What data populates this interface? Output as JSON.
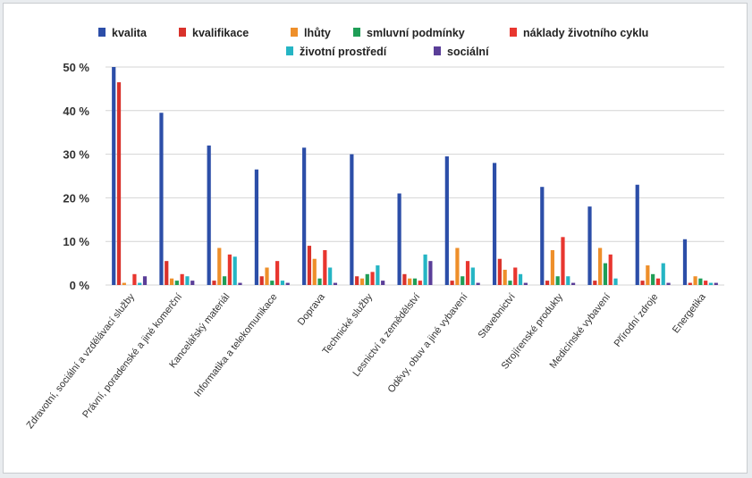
{
  "chart_data": {
    "type": "bar",
    "title": "",
    "xlabel": "",
    "ylabel": "",
    "ylim": [
      0,
      50
    ],
    "yticks": [
      "0 %",
      "10 %",
      "20 %",
      "30 %",
      "40 %",
      "50 %"
    ],
    "grid": true,
    "legend_position": "top",
    "categories": [
      "Zdravotní, sociální a vzdělávací služby",
      "Právní, poradenské a jiné komerční",
      "Kancelářský materiál",
      "Informatika a telekomunikace",
      "Doprava",
      "Technické služby",
      "Lesnictví a zemědělství",
      "Oděvy, obuv a jiné vybavení",
      "Stavebnictví",
      "Strojírenské produkty",
      "Medicínské vybavení",
      "Přírodní zdroje",
      "Energetika"
    ],
    "series": [
      {
        "name": "kvalita",
        "color": "#2c4ea8",
        "values": [
          50,
          39.5,
          32,
          26.5,
          31.5,
          30,
          21,
          29.5,
          28,
          22.5,
          18,
          23,
          10.5
        ]
      },
      {
        "name": "kvalifikace",
        "color": "#d9322b",
        "values": [
          46.5,
          5.5,
          1,
          2,
          9,
          2,
          2.5,
          1,
          6,
          1,
          1,
          1,
          0.5
        ]
      },
      {
        "name": "lhůty",
        "color": "#ee8f2a",
        "values": [
          0.5,
          1.5,
          8.5,
          4,
          6,
          1.5,
          1.5,
          8.5,
          3.5,
          8,
          8.5,
          4.5,
          2
        ]
      },
      {
        "name": "smluvní podmínky",
        "color": "#1f9e57",
        "values": [
          0,
          1,
          2,
          1,
          1.5,
          2.5,
          1.5,
          2,
          1,
          2,
          5,
          2.5,
          1.5
        ]
      },
      {
        "name": "náklady životního cyklu",
        "color": "#e8362f",
        "values": [
          2.5,
          2.5,
          7,
          5.5,
          8,
          3,
          1,
          5.5,
          4,
          11,
          7,
          1.5,
          1
        ]
      },
      {
        "name": "životní prostředí",
        "color": "#25b5c4",
        "values": [
          0.5,
          2,
          6.5,
          1,
          4,
          4.5,
          7,
          4,
          2.5,
          2,
          1.5,
          5,
          0.5
        ]
      },
      {
        "name": "sociální",
        "color": "#5a3e98",
        "values": [
          2,
          1,
          0.5,
          0.5,
          0.5,
          1,
          5.5,
          0.5,
          0.5,
          0.5,
          0,
          0.5,
          0.5
        ]
      }
    ]
  }
}
